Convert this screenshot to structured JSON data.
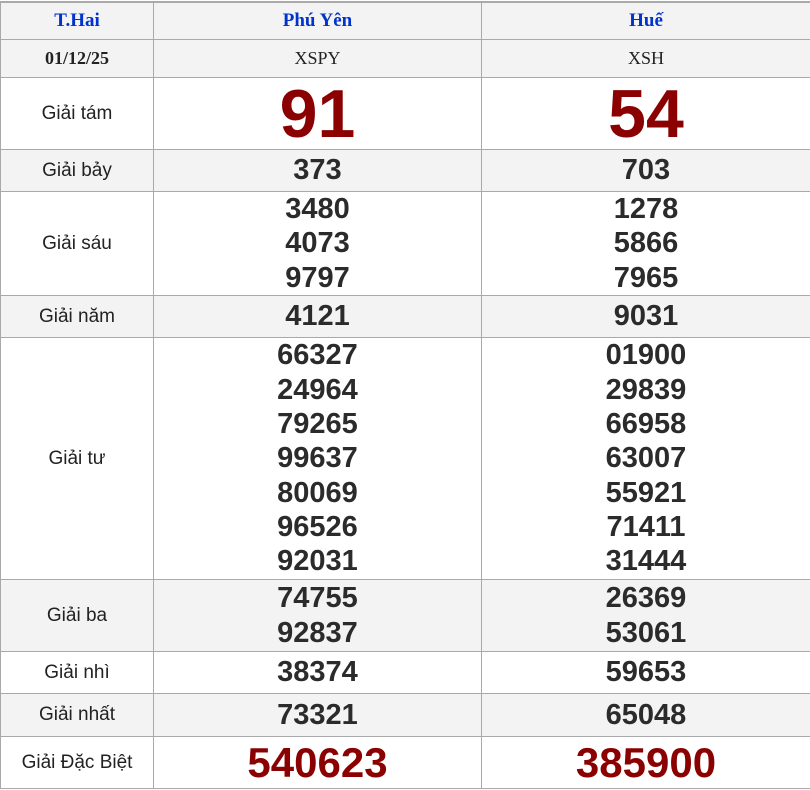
{
  "header": {
    "day": "T.Hai",
    "provinces": [
      "Phú Yên",
      "Huế"
    ]
  },
  "date_row": {
    "date": "01/12/25",
    "codes": [
      "XSPY",
      "XSH"
    ]
  },
  "prizes": [
    {
      "label": "Giải tám",
      "style": "big",
      "results": [
        [
          "91"
        ],
        [
          "54"
        ]
      ]
    },
    {
      "label": "Giải bảy",
      "results": [
        [
          "373"
        ],
        [
          "703"
        ]
      ]
    },
    {
      "label": "Giải sáu",
      "results": [
        [
          "3480",
          "4073",
          "9797"
        ],
        [
          "1278",
          "5866",
          "7965"
        ]
      ]
    },
    {
      "label": "Giải năm",
      "results": [
        [
          "4121"
        ],
        [
          "9031"
        ]
      ]
    },
    {
      "label": "Giải tư",
      "results": [
        [
          "66327",
          "24964",
          "79265",
          "99637",
          "80069",
          "96526",
          "92031"
        ],
        [
          "01900",
          "29839",
          "66958",
          "63007",
          "55921",
          "71411",
          "31444"
        ]
      ]
    },
    {
      "label": "Giải ba",
      "results": [
        [
          "74755",
          "92837"
        ],
        [
          "26369",
          "53061"
        ]
      ]
    },
    {
      "label": "Giải nhì",
      "results": [
        [
          "38374"
        ],
        [
          "59653"
        ]
      ]
    },
    {
      "label": "Giải nhất",
      "results": [
        [
          "73321"
        ],
        [
          "65048"
        ]
      ]
    },
    {
      "label": "Giải Đặc Biệt",
      "style": "db",
      "results": [
        [
          "540623"
        ],
        [
          "385900"
        ]
      ]
    }
  ],
  "colors": {
    "header_text": "#0033cc",
    "highlight_number": "#8b0000",
    "number": "#2b2b2b",
    "alt_row_bg": "#f3f3f3",
    "border": "#a9a9a9"
  }
}
